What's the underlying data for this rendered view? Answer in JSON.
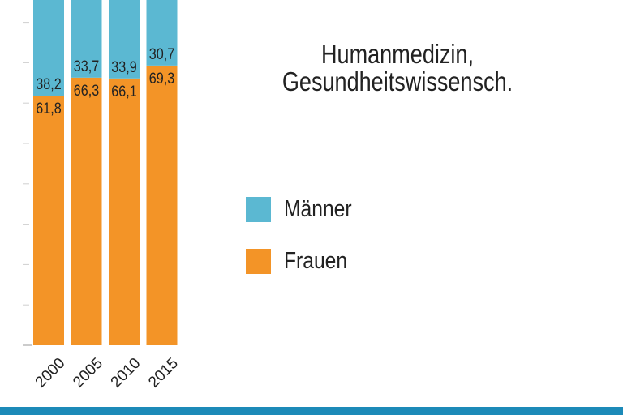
{
  "chart_data": {
    "type": "bar",
    "stacked": true,
    "title": "Humanmedizin, Gesundheitswissensch.",
    "categories": [
      "2000",
      "2005",
      "2010",
      "2015"
    ],
    "series": [
      {
        "name": "Frauen",
        "values": [
          61.8,
          66.3,
          66.1,
          69.3
        ],
        "labels": [
          "61,8",
          "66,3",
          "66,1",
          "69,3"
        ],
        "color": "#f39427"
      },
      {
        "name": "Männer",
        "values": [
          38.2,
          33.7,
          33.9,
          30.7
        ],
        "labels": [
          "38,2",
          "33,7",
          "33,9",
          "30,7"
        ],
        "color": "#5bb8d2"
      }
    ],
    "ylim": [
      0,
      100
    ],
    "xlabel": "",
    "ylabel": "",
    "legend_position": "right"
  },
  "title": {
    "line1": "Humanmedizin,",
    "line2": "Gesundheitswissensch."
  },
  "legend": {
    "maenner_label": "Männer",
    "frauen_label": "Frauen"
  },
  "colors": {
    "maenner": "#5bb8d2",
    "frauen": "#f39427",
    "footer": "#1c8ab8",
    "grid": "#cfcfcf",
    "text": "#222222"
  }
}
